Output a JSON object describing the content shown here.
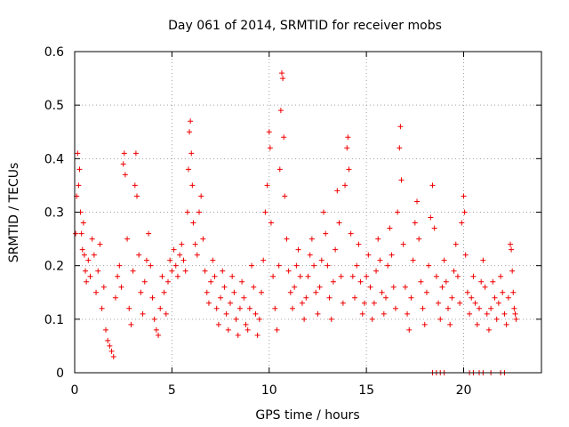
{
  "chart_data": {
    "type": "scatter",
    "title": "Day 061 of 2014, SRMTID for receiver mobs",
    "xlabel": "GPS time / hours",
    "ylabel": "SRMTID / TECUs",
    "xlim": [
      0,
      24
    ],
    "ylim": [
      0,
      0.6
    ],
    "xticks": [
      0,
      5,
      10,
      15,
      20
    ],
    "xtick_labels": [
      "0",
      "5",
      "10",
      "15",
      "20"
    ],
    "yticks": [
      0,
      0.1,
      0.2,
      0.3,
      0.4,
      0.5,
      0.6
    ],
    "ytick_labels": [
      "0",
      "0.1",
      "0.2",
      "0.3",
      "0.4",
      "0.5",
      "0.6"
    ],
    "grid": true,
    "marker": "+",
    "series": [
      {
        "name": "SRMTID",
        "color": "#ee0000",
        "points": [
          [
            0.05,
            0.26
          ],
          [
            0.1,
            0.33
          ],
          [
            0.15,
            0.41
          ],
          [
            0.2,
            0.35
          ],
          [
            0.25,
            0.38
          ],
          [
            0.3,
            0.3
          ],
          [
            0.35,
            0.26
          ],
          [
            0.4,
            0.23
          ],
          [
            0.45,
            0.28
          ],
          [
            0.5,
            0.22
          ],
          [
            0.55,
            0.19
          ],
          [
            0.6,
            0.17
          ],
          [
            0.7,
            0.21
          ],
          [
            0.8,
            0.18
          ],
          [
            0.9,
            0.25
          ],
          [
            1.0,
            0.22
          ],
          [
            1.1,
            0.15
          ],
          [
            1.2,
            0.19
          ],
          [
            1.3,
            0.24
          ],
          [
            1.4,
            0.12
          ],
          [
            1.5,
            0.16
          ],
          [
            1.6,
            0.08
          ],
          [
            1.7,
            0.06
          ],
          [
            1.8,
            0.05
          ],
          [
            1.9,
            0.04
          ],
          [
            2.0,
            0.03
          ],
          [
            2.1,
            0.14
          ],
          [
            2.2,
            0.18
          ],
          [
            2.3,
            0.2
          ],
          [
            2.4,
            0.16
          ],
          [
            2.5,
            0.39
          ],
          [
            2.55,
            0.41
          ],
          [
            2.6,
            0.37
          ],
          [
            2.7,
            0.25
          ],
          [
            2.8,
            0.12
          ],
          [
            2.9,
            0.09
          ],
          [
            3.0,
            0.19
          ],
          [
            3.1,
            0.35
          ],
          [
            3.15,
            0.41
          ],
          [
            3.2,
            0.33
          ],
          [
            3.3,
            0.22
          ],
          [
            3.4,
            0.15
          ],
          [
            3.5,
            0.11
          ],
          [
            3.6,
            0.17
          ],
          [
            3.7,
            0.21
          ],
          [
            3.8,
            0.26
          ],
          [
            3.9,
            0.2
          ],
          [
            4.0,
            0.14
          ],
          [
            4.1,
            0.1
          ],
          [
            4.2,
            0.08
          ],
          [
            4.3,
            0.07
          ],
          [
            4.4,
            0.12
          ],
          [
            4.5,
            0.18
          ],
          [
            4.6,
            0.15
          ],
          [
            4.7,
            0.11
          ],
          [
            4.8,
            0.17
          ],
          [
            4.9,
            0.21
          ],
          [
            5.0,
            0.19
          ],
          [
            5.1,
            0.23
          ],
          [
            5.2,
            0.2
          ],
          [
            5.3,
            0.18
          ],
          [
            5.4,
            0.22
          ],
          [
            5.5,
            0.24
          ],
          [
            5.6,
            0.21
          ],
          [
            5.7,
            0.19
          ],
          [
            5.8,
            0.3
          ],
          [
            5.85,
            0.38
          ],
          [
            5.9,
            0.45
          ],
          [
            5.95,
            0.47
          ],
          [
            6.0,
            0.41
          ],
          [
            6.05,
            0.35
          ],
          [
            6.1,
            0.28
          ],
          [
            6.2,
            0.24
          ],
          [
            6.3,
            0.22
          ],
          [
            6.4,
            0.3
          ],
          [
            6.5,
            0.33
          ],
          [
            6.6,
            0.25
          ],
          [
            6.7,
            0.19
          ],
          [
            6.8,
            0.15
          ],
          [
            6.9,
            0.13
          ],
          [
            7.0,
            0.17
          ],
          [
            7.1,
            0.21
          ],
          [
            7.2,
            0.18
          ],
          [
            7.3,
            0.12
          ],
          [
            7.4,
            0.09
          ],
          [
            7.5,
            0.14
          ],
          [
            7.6,
            0.19
          ],
          [
            7.7,
            0.16
          ],
          [
            7.8,
            0.11
          ],
          [
            7.9,
            0.08
          ],
          [
            8.0,
            0.13
          ],
          [
            8.1,
            0.18
          ],
          [
            8.2,
            0.15
          ],
          [
            8.3,
            0.1
          ],
          [
            8.4,
            0.07
          ],
          [
            8.5,
            0.12
          ],
          [
            8.6,
            0.17
          ],
          [
            8.7,
            0.14
          ],
          [
            8.8,
            0.09
          ],
          [
            8.9,
            0.08
          ],
          [
            9.0,
            0.12
          ],
          [
            9.1,
            0.2
          ],
          [
            9.2,
            0.16
          ],
          [
            9.3,
            0.11
          ],
          [
            9.4,
            0.07
          ],
          [
            9.5,
            0.1
          ],
          [
            9.6,
            0.15
          ],
          [
            9.7,
            0.21
          ],
          [
            9.8,
            0.3
          ],
          [
            9.9,
            0.35
          ],
          [
            10.0,
            0.45
          ],
          [
            10.05,
            0.42
          ],
          [
            10.1,
            0.28
          ],
          [
            10.2,
            0.18
          ],
          [
            10.3,
            0.12
          ],
          [
            10.4,
            0.08
          ],
          [
            10.5,
            0.2
          ],
          [
            10.55,
            0.38
          ],
          [
            10.6,
            0.49
          ],
          [
            10.65,
            0.56
          ],
          [
            10.7,
            0.55
          ],
          [
            10.75,
            0.44
          ],
          [
            10.8,
            0.33
          ],
          [
            10.9,
            0.25
          ],
          [
            11.0,
            0.19
          ],
          [
            11.1,
            0.15
          ],
          [
            11.2,
            0.12
          ],
          [
            11.3,
            0.16
          ],
          [
            11.4,
            0.2
          ],
          [
            11.5,
            0.23
          ],
          [
            11.6,
            0.18
          ],
          [
            11.7,
            0.13
          ],
          [
            11.8,
            0.1
          ],
          [
            11.9,
            0.14
          ],
          [
            12.0,
            0.18
          ],
          [
            12.1,
            0.22
          ],
          [
            12.2,
            0.25
          ],
          [
            12.3,
            0.2
          ],
          [
            12.4,
            0.15
          ],
          [
            12.5,
            0.11
          ],
          [
            12.6,
            0.16
          ],
          [
            12.7,
            0.21
          ],
          [
            12.8,
            0.3
          ],
          [
            12.9,
            0.26
          ],
          [
            13.0,
            0.2
          ],
          [
            13.1,
            0.14
          ],
          [
            13.2,
            0.1
          ],
          [
            13.3,
            0.17
          ],
          [
            13.4,
            0.23
          ],
          [
            13.5,
            0.34
          ],
          [
            13.6,
            0.28
          ],
          [
            13.7,
            0.18
          ],
          [
            13.8,
            0.13
          ],
          [
            13.9,
            0.35
          ],
          [
            14.0,
            0.42
          ],
          [
            14.05,
            0.44
          ],
          [
            14.1,
            0.38
          ],
          [
            14.2,
            0.26
          ],
          [
            14.3,
            0.18
          ],
          [
            14.4,
            0.14
          ],
          [
            14.5,
            0.2
          ],
          [
            14.6,
            0.24
          ],
          [
            14.7,
            0.17
          ],
          [
            14.8,
            0.11
          ],
          [
            14.9,
            0.13
          ],
          [
            15.0,
            0.18
          ],
          [
            15.1,
            0.22
          ],
          [
            15.2,
            0.16
          ],
          [
            15.3,
            0.1
          ],
          [
            15.4,
            0.13
          ],
          [
            15.5,
            0.19
          ],
          [
            15.6,
            0.25
          ],
          [
            15.7,
            0.21
          ],
          [
            15.8,
            0.15
          ],
          [
            15.9,
            0.11
          ],
          [
            16.0,
            0.14
          ],
          [
            16.1,
            0.2
          ],
          [
            16.2,
            0.27
          ],
          [
            16.3,
            0.22
          ],
          [
            16.4,
            0.16
          ],
          [
            16.5,
            0.12
          ],
          [
            16.6,
            0.3
          ],
          [
            16.7,
            0.42
          ],
          [
            16.75,
            0.46
          ],
          [
            16.8,
            0.36
          ],
          [
            16.9,
            0.24
          ],
          [
            17.0,
            0.16
          ],
          [
            17.1,
            0.11
          ],
          [
            17.2,
            0.08
          ],
          [
            17.3,
            0.14
          ],
          [
            17.4,
            0.21
          ],
          [
            17.5,
            0.28
          ],
          [
            17.6,
            0.32
          ],
          [
            17.7,
            0.25
          ],
          [
            17.8,
            0.17
          ],
          [
            17.9,
            0.12
          ],
          [
            18.0,
            0.09
          ],
          [
            18.1,
            0.15
          ],
          [
            18.2,
            0.2
          ],
          [
            18.3,
            0.29
          ],
          [
            18.4,
            0.35
          ],
          [
            18.5,
            0.27
          ],
          [
            18.6,
            0.18
          ],
          [
            18.7,
            0.13
          ],
          [
            18.8,
            0.1
          ],
          [
            18.9,
            0.16
          ],
          [
            19.0,
            0.21
          ],
          [
            19.1,
            0.17
          ],
          [
            19.2,
            0.12
          ],
          [
            19.3,
            0.09
          ],
          [
            19.4,
            0.14
          ],
          [
            19.5,
            0.19
          ],
          [
            19.6,
            0.24
          ],
          [
            19.7,
            0.18
          ],
          [
            19.8,
            0.13
          ],
          [
            19.9,
            0.28
          ],
          [
            20.0,
            0.33
          ],
          [
            20.05,
            0.3
          ],
          [
            20.1,
            0.22
          ],
          [
            20.2,
            0.15
          ],
          [
            20.3,
            0.11
          ],
          [
            20.4,
            0.14
          ],
          [
            20.5,
            0.18
          ],
          [
            20.6,
            0.13
          ],
          [
            20.7,
            0.09
          ],
          [
            20.8,
            0.12
          ],
          [
            20.9,
            0.17
          ],
          [
            21.0,
            0.21
          ],
          [
            21.1,
            0.16
          ],
          [
            21.2,
            0.11
          ],
          [
            21.3,
            0.08
          ],
          [
            21.4,
            0.12
          ],
          [
            21.5,
            0.17
          ],
          [
            21.6,
            0.14
          ],
          [
            21.7,
            0.1
          ],
          [
            21.8,
            0.13
          ],
          [
            21.9,
            0.18
          ],
          [
            22.0,
            0.15
          ],
          [
            22.1,
            0.11
          ],
          [
            22.2,
            0.09
          ],
          [
            22.3,
            0.14
          ],
          [
            22.4,
            0.24
          ],
          [
            22.45,
            0.23
          ],
          [
            22.5,
            0.19
          ],
          [
            22.55,
            0.15
          ],
          [
            22.6,
            0.12
          ],
          [
            22.65,
            0.11
          ],
          [
            22.7,
            0.1
          ],
          [
            18.4,
            0.0
          ],
          [
            18.6,
            0.0
          ],
          [
            18.8,
            0.0
          ],
          [
            19.0,
            0.0
          ],
          [
            20.3,
            0.0
          ],
          [
            20.5,
            0.0
          ],
          [
            20.8,
            0.0
          ],
          [
            21.0,
            0.0
          ],
          [
            21.4,
            0.0
          ],
          [
            21.9,
            0.0
          ],
          [
            22.1,
            0.0
          ]
        ]
      }
    ]
  }
}
